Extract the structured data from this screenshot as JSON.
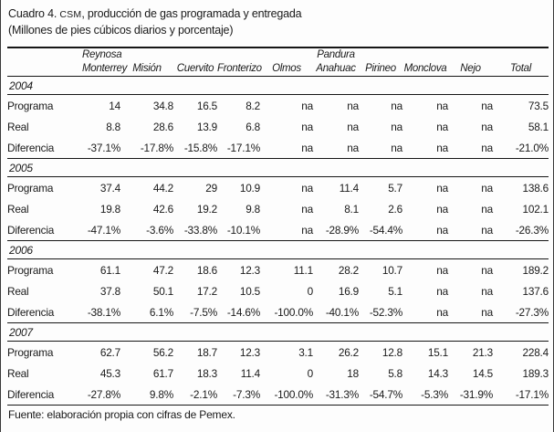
{
  "header": {
    "title_prefix": "Cuadro 4. ",
    "title_acronym": "CSM",
    "title_suffix": ", producción de gas programada y entregada",
    "subtitle": "(Millones de pies cúbicos diarios y porcentaje)"
  },
  "table": {
    "columns": [
      {
        "id": "reynosa-monterrey",
        "line1": "Reynosa",
        "line2": "Monterrey"
      },
      {
        "id": "mision",
        "line1": "",
        "line2": "Misión"
      },
      {
        "id": "cuervito",
        "line1": "",
        "line2": "Cuervito"
      },
      {
        "id": "fronterizo",
        "line1": "",
        "line2": "Fronterizo"
      },
      {
        "id": "olmos",
        "line1": "",
        "line2": "Olmos"
      },
      {
        "id": "pandura-anahuac",
        "line1": "Pandura",
        "line2": "Anahuac"
      },
      {
        "id": "pirineo",
        "line1": "",
        "line2": "Pirineo"
      },
      {
        "id": "monclova",
        "line1": "",
        "line2": "Monclova"
      },
      {
        "id": "nejo",
        "line1": "",
        "line2": "Nejo"
      },
      {
        "id": "total",
        "line1": "",
        "line2": "Total"
      }
    ],
    "sections": [
      {
        "year": "2004",
        "rows": [
          {
            "label": "Programa",
            "values": [
              "14",
              "34.8",
              "16.5",
              "8.2",
              "na",
              "na",
              "na",
              "na",
              "na",
              "73.5"
            ]
          },
          {
            "label": "Real",
            "values": [
              "8.8",
              "28.6",
              "13.9",
              "6.8",
              "na",
              "na",
              "na",
              "na",
              "na",
              "58.1"
            ]
          },
          {
            "label": "Diferencia",
            "values": [
              "-37.1%",
              "-17.8%",
              "-15.8%",
              "-17.1%",
              "na",
              "na",
              "na",
              "na",
              "na",
              "-21.0%"
            ]
          }
        ]
      },
      {
        "year": "2005",
        "rows": [
          {
            "label": "Programa",
            "values": [
              "37.4",
              "44.2",
              "29",
              "10.9",
              "na",
              "11.4",
              "5.7",
              "na",
              "na",
              "138.6"
            ]
          },
          {
            "label": "Real",
            "values": [
              "19.8",
              "42.6",
              "19.2",
              "9.8",
              "na",
              "8.1",
              "2.6",
              "na",
              "na",
              "102.1"
            ]
          },
          {
            "label": "Diferencia",
            "values": [
              "-47.1%",
              "-3.6%",
              "-33.8%",
              "-10.1%",
              "na",
              "-28.9%",
              "-54.4%",
              "na",
              "na",
              "-26.3%"
            ]
          }
        ]
      },
      {
        "year": "2006",
        "rows": [
          {
            "label": "Programa",
            "values": [
              "61.1",
              "47.2",
              "18.6",
              "12.3",
              "11.1",
              "28.2",
              "10.7",
              "na",
              "na",
              "189.2"
            ]
          },
          {
            "label": "Real",
            "values": [
              "37.8",
              "50.1",
              "17.2",
              "10.5",
              "0",
              "16.9",
              "5.1",
              "na",
              "na",
              "137.6"
            ]
          },
          {
            "label": "Diferencia",
            "values": [
              "-38.1%",
              "6.1%",
              "-7.5%",
              "-14.6%",
              "-100.0%",
              "-40.1%",
              "-52.3%",
              "na",
              "na",
              "-27.3%"
            ]
          }
        ]
      },
      {
        "year": "2007",
        "rows": [
          {
            "label": "Programa",
            "values": [
              "62.7",
              "56.2",
              "18.7",
              "12.3",
              "3.1",
              "26.2",
              "12.8",
              "15.1",
              "21.3",
              "228.4"
            ]
          },
          {
            "label": "Real",
            "values": [
              "45.3",
              "61.7",
              "18.3",
              "11.4",
              "0",
              "18",
              "5.8",
              "14.3",
              "14.5",
              "189.3"
            ]
          },
          {
            "label": "Diferencia",
            "values": [
              "-27.8%",
              "9.8%",
              "-2.1%",
              "-7.3%",
              "-100.0%",
              "-31.3%",
              "-54.7%",
              "-5.3%",
              "-31.9%",
              "-17.1%"
            ]
          }
        ]
      }
    ]
  },
  "footer": {
    "source": "Fuente: elaboración propia con cifras de Pemex."
  },
  "colors": {
    "text": "#1a1a1a",
    "rule": "#161616",
    "background": "#fdfdfd"
  }
}
